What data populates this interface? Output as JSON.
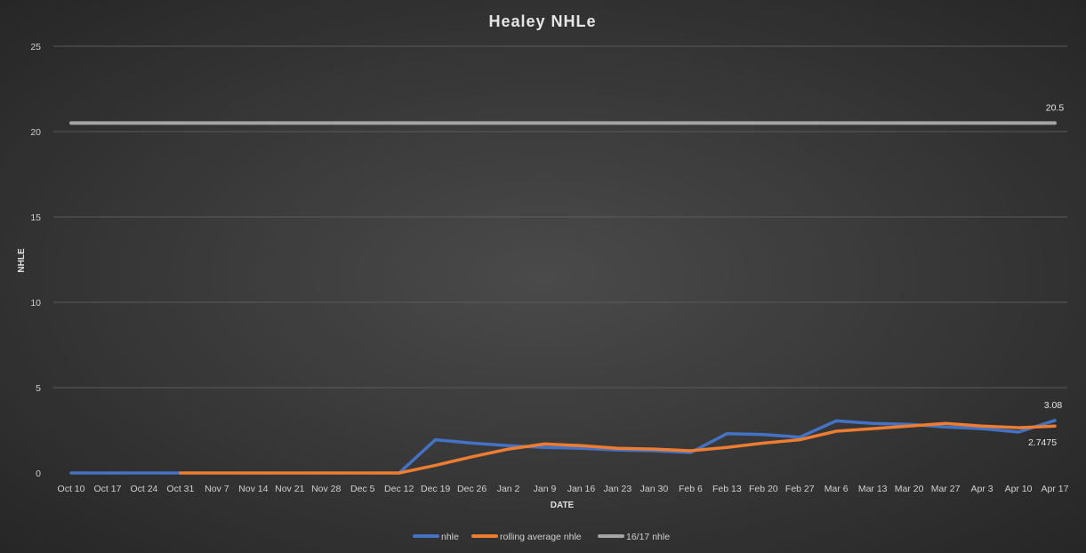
{
  "chart_data": {
    "type": "line",
    "title": "Healey  NHLe",
    "xlabel": "DATE",
    "ylabel": "NHLE",
    "ylim": [
      0,
      25
    ],
    "yticks": [
      0,
      5,
      10,
      15,
      20,
      25
    ],
    "grid": true,
    "legend": "bottom",
    "categories": [
      "Oct 10",
      "Oct 17",
      "Oct 24",
      "Oct 31",
      "Nov 7",
      "Nov 14",
      "Nov 21",
      "Nov 28",
      "Dec 5",
      "Dec 12",
      "Dec 19",
      "Dec 26",
      "Jan 2",
      "Jan 9",
      "Jan 16",
      "Jan 23",
      "Jan 30",
      "Feb 6",
      "Feb 13",
      "Feb 20",
      "Feb 27",
      "Mar 6",
      "Mar 13",
      "Mar 20",
      "Mar 27",
      "Apr 3",
      "Apr 10",
      "Apr 17"
    ],
    "series": [
      {
        "name": "nhle",
        "color": "#4472c4",
        "values": [
          0,
          0,
          0,
          0,
          null,
          null,
          null,
          null,
          null,
          0,
          1.95,
          1.75,
          1.6,
          1.5,
          1.45,
          1.35,
          1.3,
          1.2,
          2.3,
          2.25,
          2.1,
          3.05,
          2.9,
          2.85,
          2.7,
          2.6,
          2.4,
          3.08
        ]
      },
      {
        "name": "rolling average nhle",
        "color": "#ed7d31",
        "values": [
          null,
          null,
          null,
          0,
          0,
          0,
          0,
          0,
          0,
          0,
          0.45,
          0.95,
          1.4,
          1.7,
          1.6,
          1.45,
          1.4,
          1.3,
          1.5,
          1.75,
          1.95,
          2.45,
          2.6,
          2.75,
          2.9,
          2.75,
          2.65,
          2.7475
        ]
      },
      {
        "name": "16/17 nhle",
        "color": "#a5a5a5",
        "values": [
          20.5,
          20.5,
          20.5,
          20.5,
          20.5,
          20.5,
          20.5,
          20.5,
          20.5,
          20.5,
          20.5,
          20.5,
          20.5,
          20.5,
          20.5,
          20.5,
          20.5,
          20.5,
          20.5,
          20.5,
          20.5,
          20.5,
          20.5,
          20.5,
          20.5,
          20.5,
          20.5,
          20.5
        ]
      }
    ],
    "data_labels": [
      {
        "series": "16/17 nhle",
        "index": 27,
        "text": "20.5"
      },
      {
        "series": "nhle",
        "index": 27,
        "text": "3.08"
      },
      {
        "series": "rolling average nhle",
        "index": 27,
        "text": "2.7475"
      }
    ]
  }
}
